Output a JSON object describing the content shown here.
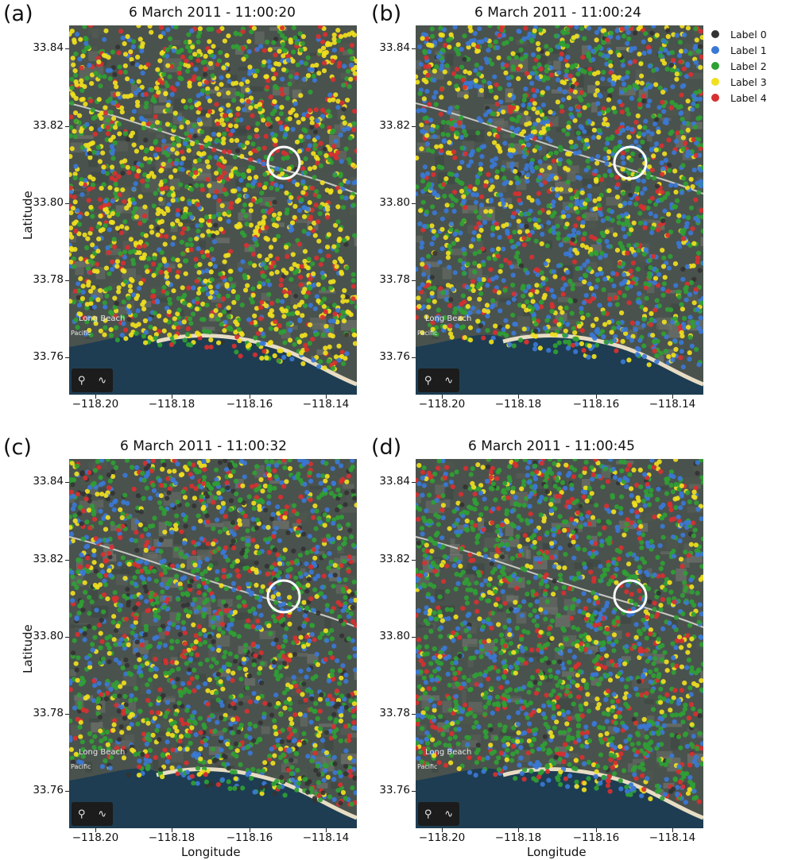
{
  "legend": [
    {
      "label": "Label 0",
      "color": "#333333"
    },
    {
      "label": "Label 1",
      "color": "#3a78d6"
    },
    {
      "label": "Label 2",
      "color": "#2fa034"
    },
    {
      "label": "Label 3",
      "color": "#f0e01e"
    },
    {
      "label": "Label 4",
      "color": "#d83030"
    }
  ],
  "axes": {
    "xlabel": "Longitude",
    "ylabel": "Latitude",
    "xticks": [
      "−118.20",
      "−118.18",
      "−118.16",
      "−118.14"
    ],
    "yticks": [
      "33.84",
      "33.82",
      "33.80",
      "33.78",
      "33.76"
    ]
  },
  "panels": [
    {
      "letter": "(a)",
      "title": "6 March 2011 - 11:00:20",
      "mix": [
        0.02,
        0.14,
        0.26,
        0.4,
        0.18
      ]
    },
    {
      "letter": "(b)",
      "title": "6 March 2011 - 11:00:24",
      "mix": [
        0.02,
        0.34,
        0.3,
        0.22,
        0.12
      ]
    },
    {
      "letter": "(c)",
      "title": "6 March 2011 - 11:00:32",
      "mix": [
        0.12,
        0.22,
        0.38,
        0.14,
        0.14
      ]
    },
    {
      "letter": "(d)",
      "title": "6 March 2011 - 11:00:45",
      "mix": [
        0.02,
        0.24,
        0.46,
        0.12,
        0.16
      ]
    }
  ],
  "map_overlay": {
    "city_text_1": "Long Beach",
    "city_text_2": "Pacific",
    "tools": [
      "location-pin-icon",
      "route-icon"
    ]
  }
}
